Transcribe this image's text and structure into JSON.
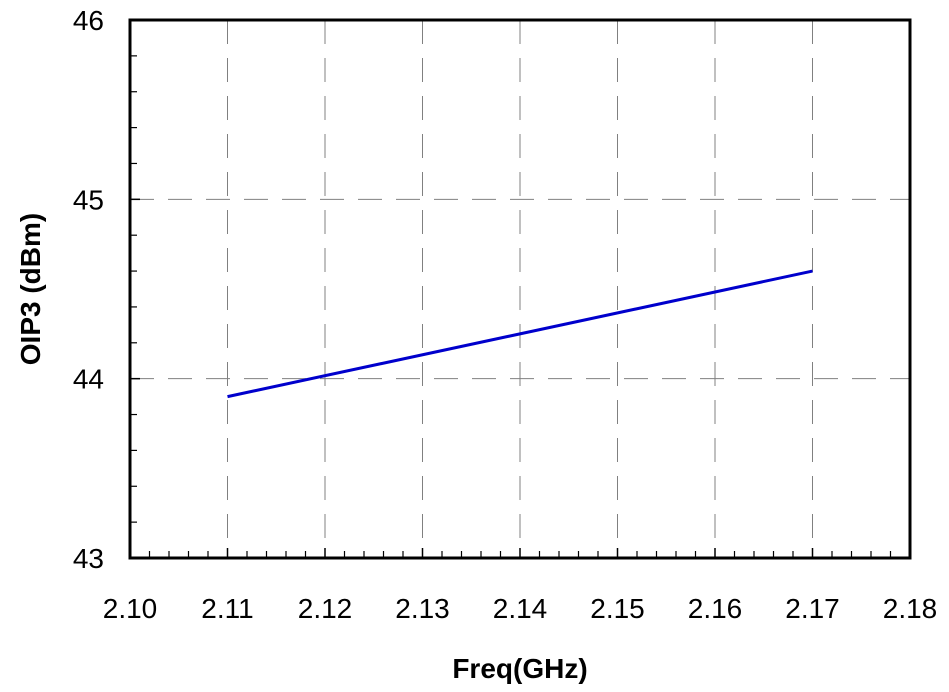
{
  "chart_data": {
    "type": "line",
    "title": "",
    "xlabel": "Freq(GHz)",
    "ylabel": "OIP3 (dBm)",
    "xlim": [
      2.1,
      2.18
    ],
    "ylim": [
      43,
      46
    ],
    "x_ticks": [
      "2.10",
      "2.11",
      "2.12",
      "2.13",
      "2.14",
      "2.15",
      "2.16",
      "2.17",
      "2.18"
    ],
    "y_ticks": [
      "43",
      "44",
      "45",
      "46"
    ],
    "grid": true,
    "legend": "none",
    "series": [
      {
        "color": "#0000cc",
        "x": [
          2.11,
          2.17
        ],
        "y": [
          43.9,
          44.6
        ]
      }
    ]
  }
}
